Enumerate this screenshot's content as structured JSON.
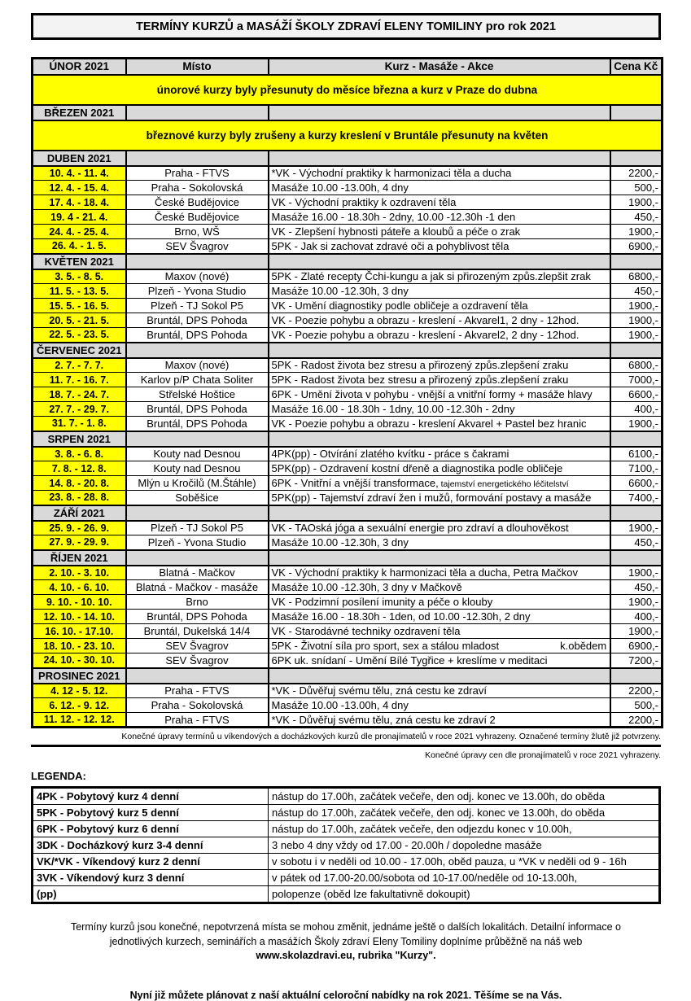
{
  "title": "TERMÍNY KURZŮ a MASÁŽÍ ŠKOLY ZDRAVÍ ELENY TOMILINY pro rok 2021",
  "table": {
    "columns": [
      "ÚNOR 2021",
      "Místo",
      "Kurz - Masáže - Akce",
      "Cena Kč"
    ],
    "sections": [
      {
        "type": "note",
        "text": "únorové kurzy byly přesunuty do měsíce března a kurz v Praze do dubna"
      },
      {
        "type": "month",
        "label": "BŘEZEN 2021"
      },
      {
        "type": "note",
        "text": "březnové kurzy byly zrušeny a kurzy kreslení v Bruntále přesunuty na květen"
      },
      {
        "type": "month",
        "label": "DUBEN 2021"
      },
      {
        "type": "row",
        "date": "10. 4. - 11. 4.",
        "place": "Praha - FTVS",
        "course": "*VK - Východní praktiky k harmonizaci těla a ducha",
        "price": "2200,-"
      },
      {
        "type": "row",
        "date": "12. 4. - 15. 4.",
        "place": "Praha - Sokolovská",
        "course": "Masáže 10.00 -13.00h, 4 dny",
        "price": "500,-"
      },
      {
        "type": "row",
        "date": "17. 4. - 18. 4.",
        "place": "České Budějovice",
        "course": "VK - Východní praktiky k ozdravení těla",
        "price": "1900,-"
      },
      {
        "type": "row",
        "date": "19. 4 - 21. 4.",
        "place": "České Budějovice",
        "course": "Masáže 16.00 - 18.30h - 2dny, 10.00 -12.30h -1 den",
        "price": "450,-"
      },
      {
        "type": "row",
        "date": "24. 4. - 25. 4.",
        "place": "Brno, WŠ",
        "course": "VK - Zlepšení hybnosti páteře a kloubů a péče o zrak",
        "price": "1900,-"
      },
      {
        "type": "row",
        "date": "26. 4. - 1. 5.",
        "place": "SEV Švagrov",
        "course": "5PK - Jak si zachovat zdravé oči a pohyblivost těla",
        "price": "6900,-"
      },
      {
        "type": "month",
        "label": "KVĚTEN 2021"
      },
      {
        "type": "row",
        "date": "3. 5. - 8. 5.",
        "place": "Maxov (nové)",
        "course": "5PK - Zlaté recepty Čchi-kungu a jak si přirozeným způs.zlepšit zrak",
        "price": "6800,-"
      },
      {
        "type": "row",
        "date": "11. 5. - 13. 5.",
        "place": "Plzeň - Yvona Studio",
        "course": "Masáže 10.00 -12.30h, 3 dny",
        "price": "450,-"
      },
      {
        "type": "row",
        "date": "15. 5. - 16. 5.",
        "place": "Plzeň - TJ Sokol P5",
        "course": "VK - Umění diagnostiky podle obličeje a ozdravení těla",
        "price": "1900,-"
      },
      {
        "type": "row",
        "date": "20. 5. - 21. 5.",
        "place": "Bruntál, DPS Pohoda",
        "course": "VK - Poezie pohybu a obrazu - kreslení - Akvarel1, 2 dny - 12hod.",
        "price": "1900,-"
      },
      {
        "type": "row",
        "date": "22. 5. - 23. 5.",
        "place": "Bruntál, DPS Pohoda",
        "course": "VK - Poezie pohybu a obrazu - kreslení - Akvarel2, 2 dny - 12hod.",
        "price": "1900,-"
      },
      {
        "type": "month",
        "label": "ČERVENEC 2021"
      },
      {
        "type": "row",
        "date": "2. 7. - 7. 7.",
        "place": "Maxov (nové)",
        "course": "5PK - Radost života bez stresu a přirozený způs.zlepšení zraku",
        "price": "6800,-"
      },
      {
        "type": "row",
        "date": "11. 7. - 16. 7.",
        "place": "Karlov p/P Chata Soliter",
        "course": "5PK - Radost života bez stresu a přirozený způs.zlepšení zraku",
        "price": "7000,-"
      },
      {
        "type": "row",
        "date": "18. 7. - 24. 7.",
        "place": "Střelské Hoštice",
        "course": "6PK - Umění života v pohybu - vnější a vnitřní formy + masáže hlavy",
        "price": "6600,-"
      },
      {
        "type": "row",
        "date": "27. 7. - 29. 7.",
        "place": "Bruntál, DPS Pohoda",
        "course": "Masáže 16.00 - 18.30h - 1dny, 10.00 -12.30h - 2dny",
        "price": "400,-"
      },
      {
        "type": "row",
        "date": "31. 7. - 1. 8.",
        "place": "Bruntál, DPS Pohoda",
        "course": "VK - Poezie pohybu a obrazu - kreslení Akvarel + Pastel bez hranic",
        "price": "1900,-"
      },
      {
        "type": "month",
        "label": "SRPEN 2021"
      },
      {
        "type": "row",
        "date": "3. 8. - 6. 8.",
        "place": "Kouty nad Desnou",
        "course": "4PK(pp) - Otvírání zlatého kvítku - práce s čakrami",
        "price": "6100,-"
      },
      {
        "type": "row",
        "date": "7. 8. - 12. 8.",
        "place": "Kouty nad Desnou",
        "course": "5PK(pp) - Ozdravení kostní dřeně a diagnostika podle obličeje",
        "price": "7100,-"
      },
      {
        "type": "row",
        "date": "14. 8. - 20. 8.",
        "place": "Mlýn u Kročilů (M.Štáhle)",
        "course": "6PK - Vnitřní a vnější transformace,",
        "course_small": " tajemství energetického léčitelství",
        "price": "6600,-"
      },
      {
        "type": "row",
        "date": "23. 8. - 28. 8.",
        "place": "Soběšice",
        "course": "5PK(pp) - Tajemství zdraví žen i mužů, formování postavy a masáže",
        "price": "7400,-"
      },
      {
        "type": "month",
        "label": "ZÁŘÍ 2021"
      },
      {
        "type": "row",
        "date": "25. 9. - 26. 9.",
        "place": "Plzeň - TJ Sokol P5",
        "course": "VK - TAOská jóga a sexuální energie pro zdraví a dlouhověkost",
        "price": "1900,-"
      },
      {
        "type": "row",
        "date": "27. 9. - 29. 9.",
        "place": "Plzeň - Yvona Studio",
        "course": "Masáže 10.00 -12.30h, 3 dny",
        "price": "450,-"
      },
      {
        "type": "month",
        "label": "ŘÍJEN 2021"
      },
      {
        "type": "row",
        "date": "2. 10. - 3. 10.",
        "place": "Blatná - Mačkov",
        "course": "VK - Východní praktiky k harmonizaci těla a ducha, Petra Mačkov",
        "price": "1900,-"
      },
      {
        "type": "row",
        "date": "4. 10. - 6. 10.",
        "place": "Blatná - Mačkov - masáže",
        "course": "Masáže 10.00 -12.30h, 3 dny v Mačkově",
        "price": "450,-"
      },
      {
        "type": "row",
        "date": "9. 10. - 10. 10.",
        "place": "Brno",
        "course": "VK - Podzimní posílení imunity a péče o klouby",
        "price": "1900,-"
      },
      {
        "type": "row",
        "date": "12. 10. - 14. 10.",
        "place": "Bruntál, DPS Pohoda",
        "course": "Masáže 16.00 - 18.30h - 1den, od 10.00 -12.30h, 2 dny",
        "price": "400,-"
      },
      {
        "type": "row",
        "date": "16. 10. - 17.10.",
        "place": "Bruntál, Dukelská 14/4",
        "course": "VK - Starodávné techniky ozdravení těla",
        "price": "1900,-"
      },
      {
        "type": "row",
        "date": "18. 10. - 23. 10.",
        "place": "SEV Švagrov",
        "course": "5PK - Životní síla pro sport, sex a stálou mladost",
        "course_tab": "k.obědem",
        "price": "6900,-"
      },
      {
        "type": "row",
        "date": "24. 10. - 30. 10.",
        "place": "SEV Švagrov",
        "course": "6PK uk. snídaní - Umění Bílé Tygřice + kreslíme v meditaci",
        "price": "7200,-"
      },
      {
        "type": "month",
        "label": "PROSINEC 2021"
      },
      {
        "type": "row",
        "date": "4. 12 - 5. 12.",
        "place": "Praha - FTVS",
        "course": "*VK - Důvěřuj svému tělu, zná cestu ke zdraví",
        "price": "2200,-"
      },
      {
        "type": "row",
        "date": "6. 12. - 9. 12.",
        "place": "Praha - Sokolovská",
        "course": "Masáže 10.00 -13.00h, 4 dny",
        "price": "500,-"
      },
      {
        "type": "row",
        "date": "11. 12. - 12. 12.",
        "place": "Praha - FTVS",
        "course": "*VK - Důvěřuj svému tělu, zná cestu ke zdraví 2",
        "price": "2200,-"
      }
    ]
  },
  "notes": {
    "terms": "Konečné úpravy termínů u víkendových a docházkových kurzů dle pronajímatelů v roce 2021 vyhrazeny. Označené termíny žlutě již potvrzeny.",
    "prices": "Konečné úpravy cen dle pronajímatelů v roce 2021 vyhrazeny."
  },
  "legend": {
    "title": "LEGENDA:",
    "rows": [
      {
        "term": "4PK - Pobytový kurz 4 denní",
        "desc": "nástup do 17.00h, začátek večeře, den odj. konec ve 13.00h, do oběda"
      },
      {
        "term": "5PK - Pobytový kurz 5 denní",
        "desc": "nástup do 17.00h, začátek večeře, den odj. konec ve 13.00h, do oběda"
      },
      {
        "term": "6PK - Pobytový kurz 6 denní",
        "desc": "nástup do 17.00h, začátek večeře, den odjezdu konec  v 10.00h,"
      },
      {
        "term": "3DK - Docházkový kurz 3-4 denní",
        "desc": "3 nebo 4 dny vždy od 17.00 - 20.00h / dopoledne masáže"
      },
      {
        "term": "VK/*VK  - Víkendový kurz 2 denní",
        "desc": "v sobotu i v neděli od 10.00 - 17.00h, oběd pauza, u *VK v neděli od 9 - 16h"
      },
      {
        "term": "3VK - Víkendový kurz 3 denní",
        "desc": "v pátek od 17.00-20.00/sobota od 10-17.00/neděle od 10-13.00h,"
      },
      {
        "term": "(pp)",
        "desc": "polopenze (oběd lze fakultativně dokoupit)"
      }
    ]
  },
  "footer": {
    "paragraph_before": "Termíny kurzů jsou konečné, nepotvrzená místa se mohou změnit, jednáme ještě o dalších lokalitách.  Detailní informace o jednotlivých kurzech, seminářích a masážích Školy zdraví Eleny Tomiliny doplníme průběžně na náš web ",
    "paragraph_bold": "www.skolazdravi.eu, rubrika \"Kurzy\".",
    "closing": "Nyní již můžete plánovat z naší aktuální celoroční nabídky na rok 2021. Těšíme se na Vás."
  },
  "colors": {
    "highlight_yellow": "#ffff00",
    "month_grey": "#d9d9d9",
    "border_black": "#000000"
  }
}
